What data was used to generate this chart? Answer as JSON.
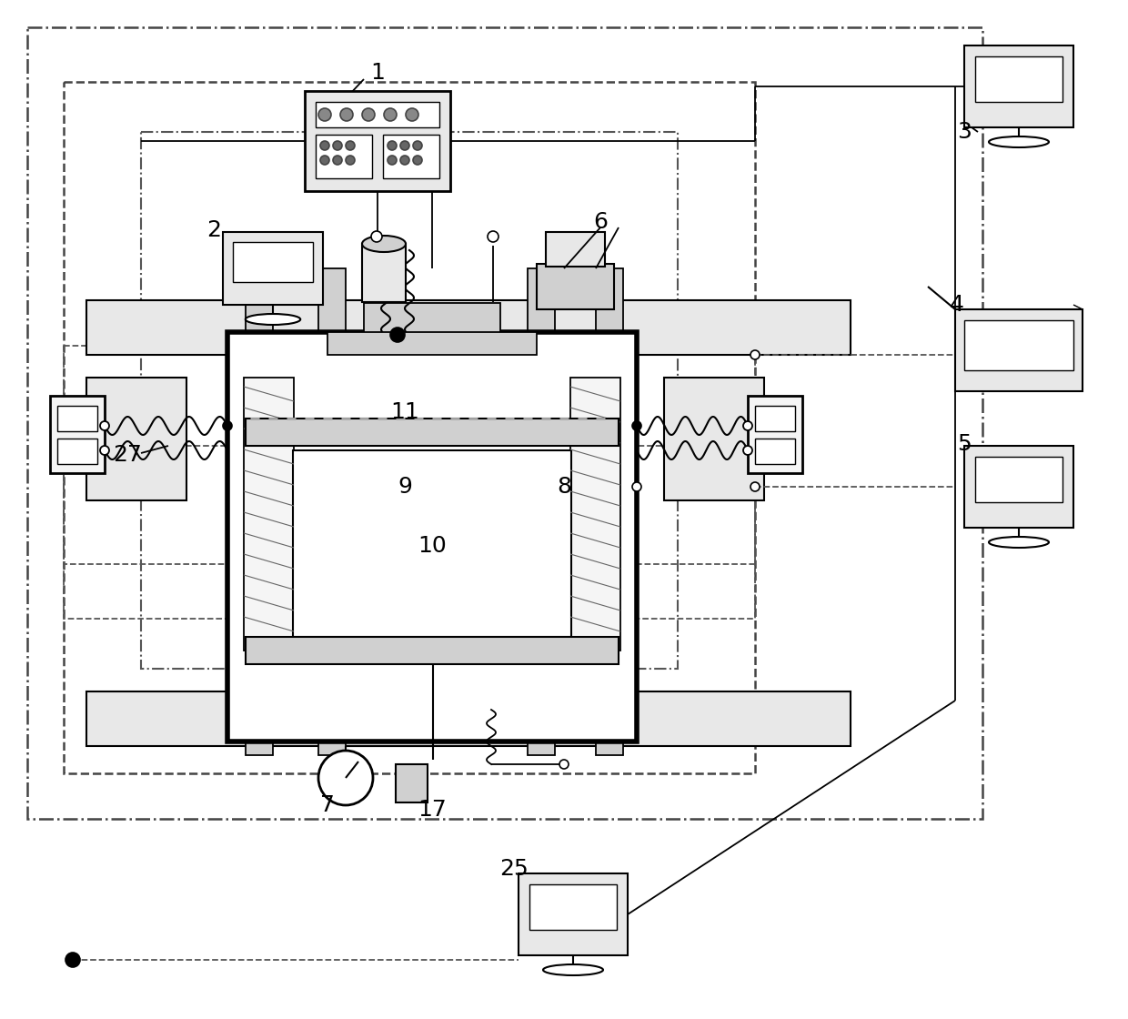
{
  "bg_color": "#ffffff",
  "lc": "#000000",
  "gray1": "#e8e8e8",
  "gray2": "#d0d0d0",
  "gray3": "#f5f5f5",
  "dc": "#555555"
}
